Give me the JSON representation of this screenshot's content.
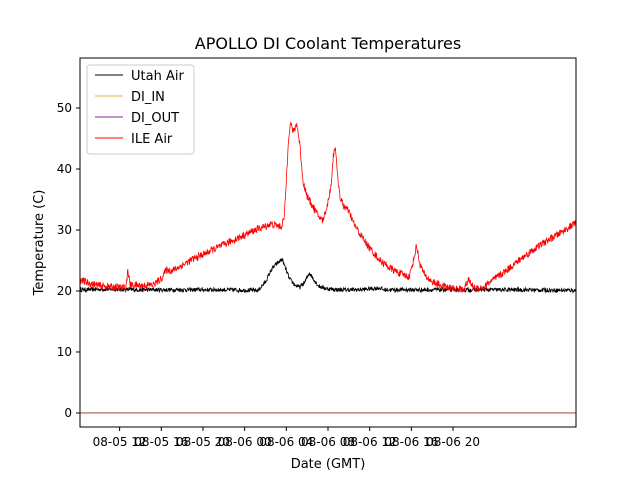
{
  "chart_data": {
    "type": "line",
    "title": "APOLLO DI Coolant Temperatures",
    "xlabel": "Date (GMT)",
    "ylabel": "Temperature (C)",
    "x_unit": "hours since 2020-08-05 00:00 GMT",
    "xlim": [
      8.2,
      55.8
    ],
    "ylim": [
      -2.3,
      58.2
    ],
    "x_ticks": [
      {
        "x": 12,
        "label": "08-05 12"
      },
      {
        "x": 16,
        "label": "08-05 16"
      },
      {
        "x": 20,
        "label": "08-05 20"
      },
      {
        "x": 24,
        "label": "08-06 00"
      },
      {
        "x": 28,
        "label": "08-06 04"
      },
      {
        "x": 32,
        "label": "08-06 08"
      },
      {
        "x": 36,
        "label": "08-06 12"
      },
      {
        "x": 40,
        "label": "08-06 16"
      },
      {
        "x": 44,
        "label": "08-06 20"
      }
    ],
    "y_ticks": [
      {
        "y": 0,
        "label": "0"
      },
      {
        "y": 10,
        "label": "10"
      },
      {
        "y": 20,
        "label": "20"
      },
      {
        "y": 30,
        "label": "30"
      },
      {
        "y": 40,
        "label": "40"
      },
      {
        "y": 50,
        "label": "50"
      }
    ],
    "legend_position": "top-left",
    "series": [
      {
        "name": "Utah Air",
        "color": "#000000",
        "noise": 0.35,
        "points": [
          [
            8.2,
            20.2
          ],
          [
            11,
            20.3
          ],
          [
            14,
            20.2
          ],
          [
            18,
            20.2
          ],
          [
            22,
            20.2
          ],
          [
            25.3,
            20.1
          ],
          [
            26,
            21.5
          ],
          [
            26.6,
            23.6
          ],
          [
            27.1,
            24.5
          ],
          [
            27.6,
            25.2
          ],
          [
            27.9,
            23.8
          ],
          [
            28.3,
            22.0
          ],
          [
            28.8,
            21.0
          ],
          [
            29.3,
            20.6
          ],
          [
            29.8,
            21.5
          ],
          [
            30.2,
            23.0
          ],
          [
            30.6,
            22.0
          ],
          [
            31.1,
            20.8
          ],
          [
            31.8,
            20.4
          ],
          [
            33,
            20.2
          ],
          [
            35,
            20.2
          ],
          [
            37,
            20.5
          ],
          [
            37.3,
            20.2
          ],
          [
            40,
            20.2
          ],
          [
            45,
            20.2
          ],
          [
            50,
            20.2
          ],
          [
            55.8,
            20.1
          ]
        ]
      },
      {
        "name": "DI_IN",
        "color": "#d6b84a",
        "noise": 0,
        "points": [
          [
            8.2,
            0.05
          ],
          [
            55.8,
            0.05
          ]
        ]
      },
      {
        "name": "DI_OUT",
        "color": "#8a2a8a",
        "noise": 0,
        "points": [
          [
            8.2,
            0.0
          ],
          [
            55.8,
            0.0
          ]
        ]
      },
      {
        "name": "ILE Air",
        "color": "#ff0000",
        "noise": 0.6,
        "points": [
          [
            8.2,
            21.8
          ],
          [
            9,
            21.3
          ],
          [
            10,
            20.9
          ],
          [
            11,
            20.7
          ],
          [
            12,
            20.6
          ],
          [
            12.6,
            20.5
          ],
          [
            12.8,
            23.5
          ],
          [
            13,
            21.0
          ],
          [
            14,
            20.9
          ],
          [
            15.2,
            21.0
          ],
          [
            16,
            22.0
          ],
          [
            16.5,
            23.5
          ],
          [
            17,
            23.3
          ],
          [
            18,
            24.2
          ],
          [
            19,
            25.2
          ],
          [
            20,
            26.0
          ],
          [
            21,
            26.8
          ],
          [
            22,
            27.6
          ],
          [
            23,
            28.4
          ],
          [
            24,
            29.2
          ],
          [
            25,
            30.0
          ],
          [
            26,
            30.6
          ],
          [
            26.5,
            31.0
          ],
          [
            27,
            30.8
          ],
          [
            27.5,
            30.5
          ],
          [
            27.8,
            32.0
          ],
          [
            28,
            38.0
          ],
          [
            28.2,
            45.0
          ],
          [
            28.4,
            47.5
          ],
          [
            28.7,
            46.0
          ],
          [
            29,
            47.5
          ],
          [
            29.3,
            44.0
          ],
          [
            29.6,
            38.0
          ],
          [
            30,
            35.5
          ],
          [
            30.5,
            34.0
          ],
          [
            31,
            32.5
          ],
          [
            31.5,
            31.5
          ],
          [
            32,
            34.5
          ],
          [
            32.3,
            37.5
          ],
          [
            32.5,
            42.0
          ],
          [
            32.7,
            44.0
          ],
          [
            32.9,
            39.0
          ],
          [
            33.2,
            35.0
          ],
          [
            33.5,
            34.0
          ],
          [
            34,
            33.0
          ],
          [
            34.5,
            31.0
          ],
          [
            35,
            29.5
          ],
          [
            36,
            27.0
          ],
          [
            37,
            25.0
          ],
          [
            38,
            23.7
          ],
          [
            39,
            22.8
          ],
          [
            39.8,
            22.3
          ],
          [
            40.2,
            25.0
          ],
          [
            40.5,
            27.5
          ],
          [
            40.8,
            24.5
          ],
          [
            41.3,
            22.5
          ],
          [
            42,
            21.5
          ],
          [
            43,
            20.8
          ],
          [
            44,
            20.4
          ],
          [
            45,
            20.3
          ],
          [
            45.5,
            21.8
          ],
          [
            46,
            20.5
          ],
          [
            47,
            20.6
          ],
          [
            47.5,
            21.5
          ],
          [
            48,
            22.0
          ],
          [
            49,
            23.2
          ],
          [
            50,
            24.6
          ],
          [
            51,
            25.9
          ],
          [
            52,
            27.1
          ],
          [
            53,
            28.2
          ],
          [
            54,
            29.2
          ],
          [
            55,
            30.3
          ],
          [
            55.8,
            31.2
          ]
        ]
      }
    ]
  }
}
